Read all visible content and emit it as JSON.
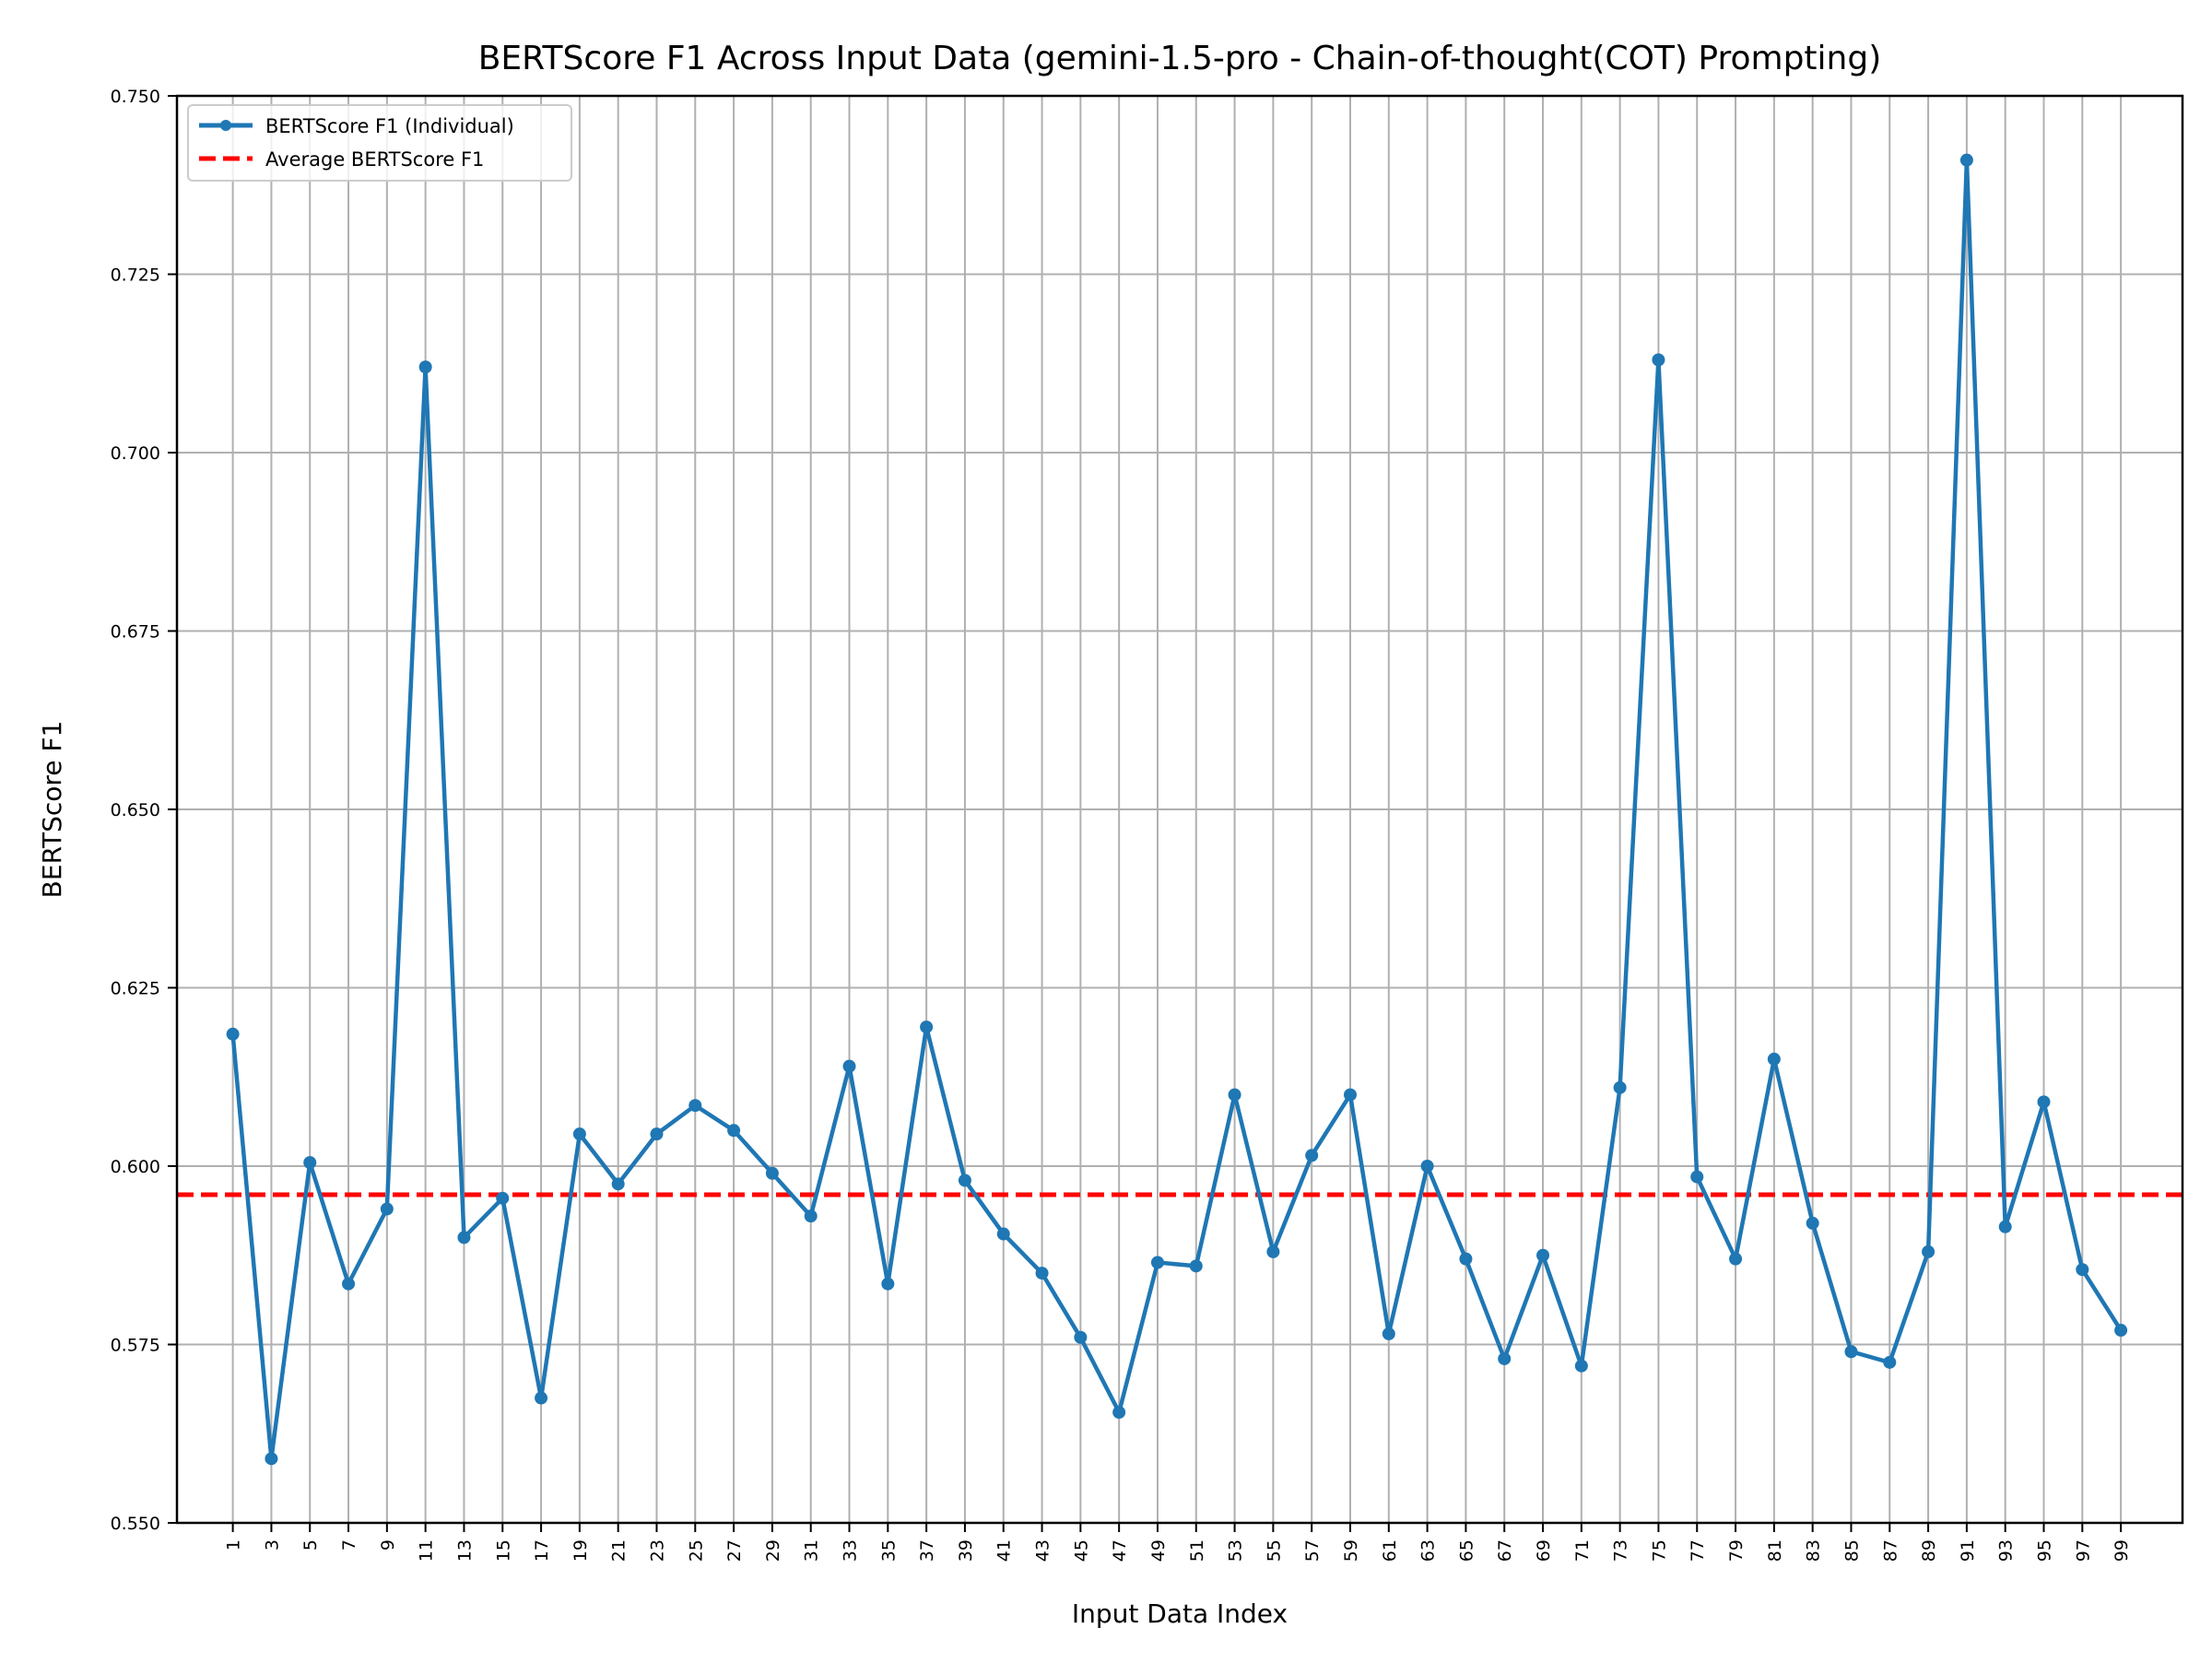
{
  "chart_data": {
    "type": "line",
    "title": "BERTScore F1 Across Input Data (gemini-1.5-pro - Chain-of-thought(COT) Prompting)",
    "xlabel": "Input Data Index",
    "ylabel": "BERTScore F1",
    "ylim": [
      0.55,
      0.75
    ],
    "xlim": [
      -1.9,
      102.2
    ],
    "yticks": [
      "0.550",
      "0.575",
      "0.600",
      "0.625",
      "0.650",
      "0.675",
      "0.700",
      "0.725",
      "0.750"
    ],
    "xticks": [
      1,
      3,
      5,
      7,
      9,
      11,
      13,
      15,
      17,
      19,
      21,
      23,
      25,
      27,
      29,
      31,
      33,
      35,
      37,
      39,
      41,
      43,
      45,
      47,
      49,
      51,
      53,
      55,
      57,
      59,
      61,
      63,
      65,
      67,
      69,
      71,
      73,
      75,
      77,
      79,
      81,
      83,
      85,
      87,
      89,
      91,
      93,
      95,
      97,
      99
    ],
    "grid": true,
    "legend_position": "top-left",
    "series": [
      {
        "name": "BERTScore F1 (Individual)",
        "color": "#1f77b4",
        "x": [
          1,
          3,
          5,
          7,
          9,
          11,
          13,
          15,
          17,
          19,
          21,
          23,
          25,
          27,
          29,
          31,
          33,
          35,
          37,
          39,
          41,
          43,
          45,
          47,
          49,
          51,
          53,
          55,
          57,
          59,
          61,
          63,
          65,
          67,
          69,
          71,
          73,
          75,
          77,
          79,
          81,
          83,
          85,
          87,
          89,
          91,
          93,
          95,
          97,
          99
        ],
        "y": [
          0.6185,
          0.559,
          0.6005,
          0.5835,
          0.594,
          0.712,
          0.59,
          0.5955,
          0.5675,
          0.6045,
          0.5975,
          0.6045,
          0.6085,
          0.605,
          0.599,
          0.593,
          0.614,
          0.5835,
          0.6195,
          0.598,
          0.5905,
          0.585,
          0.576,
          0.5655,
          0.5865,
          0.586,
          0.61,
          0.588,
          0.6015,
          0.61,
          0.5765,
          0.6,
          0.587,
          0.573,
          0.5875,
          0.572,
          0.611,
          0.713,
          0.5985,
          0.587,
          0.615,
          0.592,
          0.574,
          0.5725,
          0.588,
          0.741,
          0.5915,
          0.609,
          0.5855,
          0.577
        ]
      },
      {
        "name": "Average BERTScore F1",
        "color": "#ff0000",
        "value": 0.596
      }
    ]
  }
}
